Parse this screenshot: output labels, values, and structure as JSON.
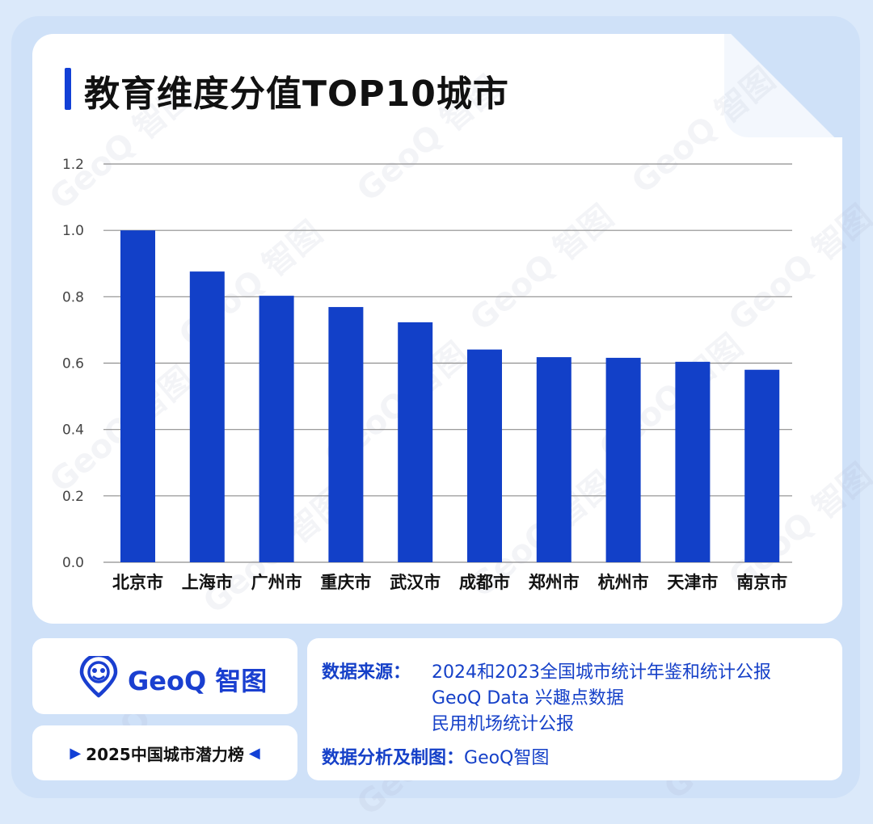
{
  "title": "教育维度分值TOP10城市",
  "watermark_text": "GeoQ 智图",
  "brand": {
    "name": "GeoQ 智图",
    "color": "#1a3fd0"
  },
  "ranking_label": "2025中国城市潜力榜",
  "source": {
    "label": "数据来源：",
    "lines": [
      "2024和2023全国城市统计年鉴和统计公报",
      "GeoQ Data 兴趣点数据",
      "民用机场统计公报"
    ],
    "analysis_label": "数据分析及制图：",
    "analysis_value": "GeoQ智图"
  },
  "colors": {
    "accent": "#1240d6",
    "bar": "#1240c8",
    "grid": "#8e8e8e",
    "background": "#dbe9fa"
  },
  "chart_data": {
    "type": "bar",
    "title": "教育维度分值TOP10城市",
    "categories": [
      "北京市",
      "上海市",
      "广州市",
      "重庆市",
      "武汉市",
      "成都市",
      "郑州市",
      "杭州市",
      "天津市",
      "南京市"
    ],
    "values": [
      1.0,
      0.876,
      0.803,
      0.769,
      0.723,
      0.641,
      0.618,
      0.616,
      0.604,
      0.58
    ],
    "ylim": [
      0,
      1.2
    ],
    "yticks": [
      "0.0",
      "0.2",
      "0.4",
      "0.6",
      "0.8",
      "1.0",
      "1.2"
    ],
    "grid": true,
    "xlabel": "",
    "ylabel": ""
  }
}
